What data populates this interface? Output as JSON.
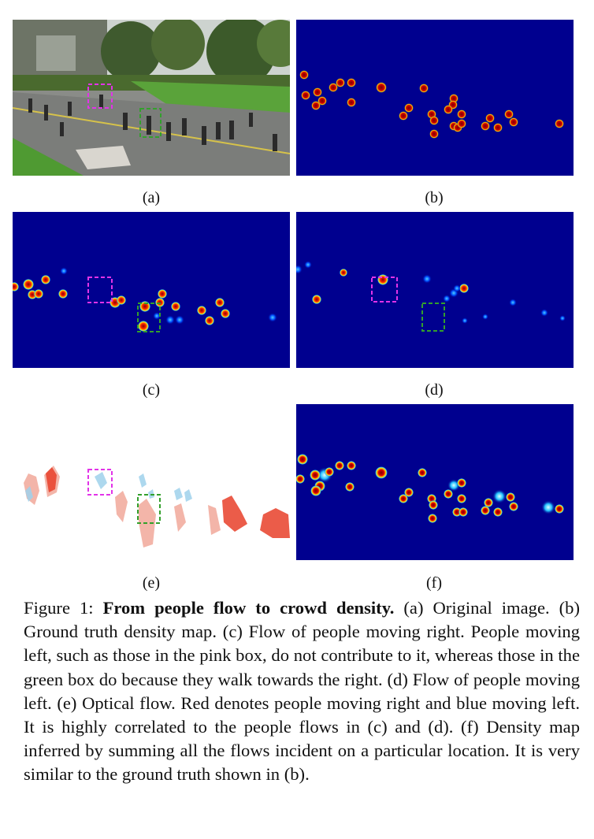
{
  "labels": {
    "a": "(a)",
    "b": "(b)",
    "c": "(c)",
    "d": "(d)",
    "e": "(e)",
    "f": "(f)"
  },
  "caption": {
    "prefix": "Figure 1: ",
    "title": "From people flow to crowd density.",
    "body": " (a) Original image. (b) Ground truth density map. (c) Flow of people moving right. People moving left, such as those in the pink box, do not contribute to it, whereas those in the green box do because they walk towards the right. (d) Flow of people moving left. (e) Optical flow. Red denotes people moving right and blue moving left. It is highly correlated to the people flows in (c) and (d). (f) Density map inferred by summing all the flows incident on a particular location. It is very similar to the ground truth shown in (b)."
  },
  "colors": {
    "density_bg": "#00008f",
    "hot": "#8b0000",
    "pink_box": "#e233e8",
    "green_box": "#33a02c",
    "flow_red": "#e8402a",
    "flow_blue": "#7fc8e8"
  }
}
